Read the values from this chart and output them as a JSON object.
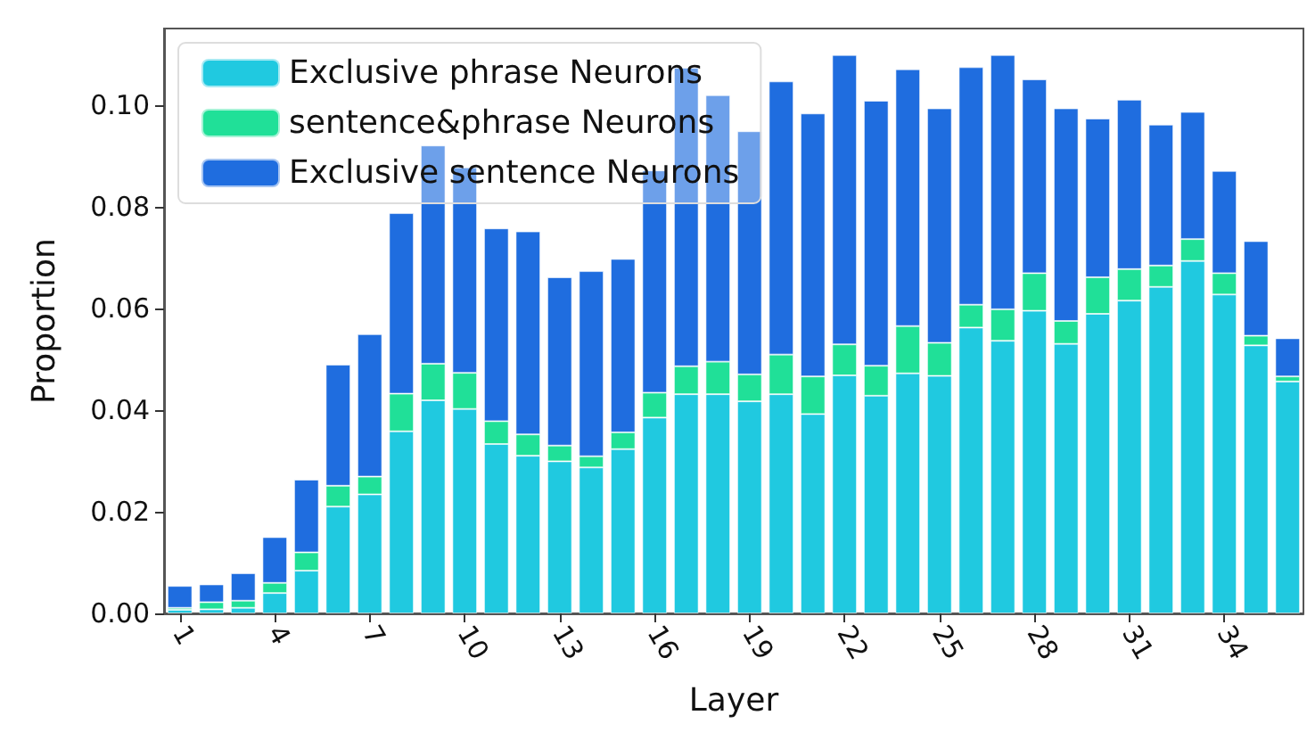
{
  "chart_data": {
    "type": "bar",
    "stacked": true,
    "xlabel": "Layer",
    "ylabel": "Proportion",
    "categories": [
      "1",
      null,
      null,
      "4",
      null,
      null,
      "7",
      null,
      null,
      "10",
      null,
      null,
      "13",
      null,
      null,
      "16",
      null,
      null,
      "19",
      null,
      null,
      "22",
      null,
      null,
      "25",
      null,
      null,
      "28",
      null,
      null,
      "31",
      null,
      null,
      "34",
      null,
      null
    ],
    "series": [
      {
        "name": "Exclusive phrase Neurons",
        "color": "#20c9e0",
        "values": [
          0.0007,
          0.0008,
          0.0011,
          0.004,
          0.0084,
          0.021,
          0.0234,
          0.0358,
          0.0419,
          0.0402,
          0.0333,
          0.031,
          0.0299,
          0.0287,
          0.0323,
          0.0385,
          0.0431,
          0.0431,
          0.0417,
          0.0431,
          0.0392,
          0.0468,
          0.0428,
          0.0472,
          0.0467,
          0.0562,
          0.0536,
          0.0595,
          0.053,
          0.0589,
          0.0615,
          0.0642,
          0.0693,
          0.0627,
          0.0527,
          0.0456
        ]
      },
      {
        "name": "sentence&phrase Neurons",
        "color": "#20e098",
        "values": [
          0.0004,
          0.0014,
          0.0014,
          0.002,
          0.0036,
          0.0041,
          0.0035,
          0.0074,
          0.0072,
          0.0071,
          0.0045,
          0.0042,
          0.0031,
          0.0022,
          0.0033,
          0.0049,
          0.0055,
          0.0064,
          0.0053,
          0.0078,
          0.0074,
          0.0061,
          0.0059,
          0.0093,
          0.0065,
          0.0045,
          0.0062,
          0.0074,
          0.0045,
          0.0072,
          0.0062,
          0.0042,
          0.0043,
          0.0042,
          0.0019,
          0.001
        ]
      },
      {
        "name": "Exclusive sentence Neurons",
        "color": "#1f6ddf",
        "values": [
          0.0043,
          0.0035,
          0.0054,
          0.009,
          0.0143,
          0.0238,
          0.028,
          0.0355,
          0.0429,
          0.0404,
          0.0379,
          0.0399,
          0.0331,
          0.0364,
          0.0341,
          0.0437,
          0.0587,
          0.0524,
          0.0478,
          0.0537,
          0.0517,
          0.0569,
          0.0521,
          0.0505,
          0.0461,
          0.0467,
          0.05,
          0.0381,
          0.0418,
          0.0312,
          0.0333,
          0.0277,
          0.025,
          0.0201,
          0.0186,
          0.0075
        ]
      }
    ],
    "ylim": [
      0,
      0.115
    ],
    "yticks": [
      {
        "value": 0,
        "label": "0.00"
      },
      {
        "value": 0.02,
        "label": "0.02"
      },
      {
        "value": 0.04,
        "label": "0.04"
      },
      {
        "value": 0.06,
        "label": "0.06"
      },
      {
        "value": 0.08,
        "label": "0.08"
      },
      {
        "value": 0.1,
        "label": "0.10"
      }
    ],
    "legend": "top left",
    "grid": false
  }
}
